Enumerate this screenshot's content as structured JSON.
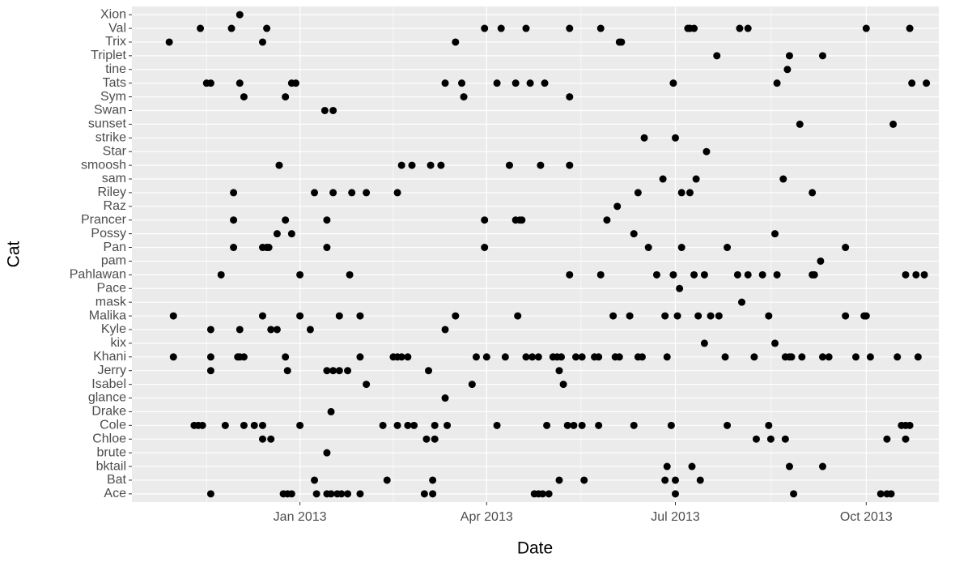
{
  "chart_data": {
    "type": "scatter",
    "x_label": "Date",
    "y_label": "Cat",
    "xlim": [
      "2012-10-12",
      "2013-11-05"
    ],
    "xticks": [
      {
        "value": "2013-01-01",
        "label": "Jan 2013"
      },
      {
        "value": "2013-04-01",
        "label": "Apr 2013"
      },
      {
        "value": "2013-07-01",
        "label": "Jul 2013"
      },
      {
        "value": "2013-10-01",
        "label": "Oct 2013"
      }
    ],
    "categories": [
      "Ace",
      "Bat",
      "bktail",
      "brute",
      "Chloe",
      "Cole",
      "Drake",
      "glance",
      "Isabel",
      "Jerry",
      "Khani",
      "kix",
      "Kyle",
      "Malika",
      "mask",
      "Pace",
      "Pahlawan",
      "pam",
      "Pan",
      "Possy",
      "Prancer",
      "Raz",
      "Riley",
      "sam",
      "smoosh",
      "Star",
      "strike",
      "sunset",
      "Swan",
      "Sym",
      "Tats",
      "tine",
      "Triplet",
      "Trix",
      "Val",
      "Xion"
    ],
    "color": "#000000",
    "grid": true,
    "background": "#ebebeb",
    "x": [
      "2012-12-03",
      "2012-11-14",
      "2012-11-29",
      "2012-12-16",
      "2013-03-31",
      "2013-04-08",
      "2013-04-20",
      "2013-05-11",
      "2013-05-26",
      "2013-07-07",
      "2013-07-08",
      "2013-07-10",
      "2013-08-01",
      "2013-08-05",
      "2013-10-01",
      "2013-10-22",
      "2012-10-30",
      "2012-12-14",
      "2013-03-17",
      "2013-06-04",
      "2013-06-05",
      "2013-07-21",
      "2013-08-25",
      "2013-09-10",
      "2013-08-24",
      "2012-11-17",
      "2012-11-19",
      "2012-12-03",
      "2012-12-28",
      "2012-12-30",
      "2013-03-12",
      "2013-03-20",
      "2013-04-06",
      "2013-04-15",
      "2013-04-22",
      "2013-04-29",
      "2013-06-30",
      "2013-08-19",
      "2013-10-23",
      "2013-10-30",
      "2012-12-05",
      "2012-12-25",
      "2013-03-21",
      "2013-05-11",
      "2013-01-13",
      "2013-01-17",
      "2013-08-30",
      "2013-10-14",
      "2013-06-16",
      "2013-07-01",
      "2013-07-16",
      "2012-12-22",
      "2013-02-19",
      "2013-02-24",
      "2013-03-05",
      "2013-03-10",
      "2013-04-12",
      "2013-04-27",
      "2013-05-11",
      "2013-06-25",
      "2013-07-11",
      "2013-08-22",
      "2012-11-30",
      "2013-01-08",
      "2013-01-17",
      "2013-01-26",
      "2013-02-02",
      "2013-02-17",
      "2013-06-13",
      "2013-07-04",
      "2013-07-08",
      "2013-09-05",
      "2013-06-03",
      "2012-11-30",
      "2012-12-25",
      "2013-01-14",
      "2013-03-31",
      "2013-04-15",
      "2013-04-17",
      "2013-04-18",
      "2013-05-29",
      "2012-12-21",
      "2012-12-28",
      "2013-06-11",
      "2013-08-18",
      "2012-11-30",
      "2012-12-14",
      "2012-12-16",
      "2012-12-17",
      "2013-01-14",
      "2013-03-31",
      "2013-06-18",
      "2013-07-04",
      "2013-07-26",
      "2013-09-21",
      "2013-09-09",
      "2012-11-24",
      "2013-01-01",
      "2013-01-25",
      "2013-05-11",
      "2013-05-26",
      "2013-06-22",
      "2013-06-30",
      "2013-07-10",
      "2013-07-15",
      "2013-07-31",
      "2013-08-05",
      "2013-08-12",
      "2013-08-19",
      "2013-09-05",
      "2013-09-06",
      "2013-10-20",
      "2013-10-25",
      "2013-10-29",
      "2013-07-03",
      "2013-08-02",
      "2012-11-01",
      "2012-12-14",
      "2013-01-01",
      "2013-01-20",
      "2013-01-30",
      "2013-03-17",
      "2013-04-16",
      "2013-06-01",
      "2013-06-09",
      "2013-06-26",
      "2013-07-02",
      "2013-07-12",
      "2013-07-18",
      "2013-07-22",
      "2013-08-15",
      "2013-09-21",
      "2013-09-30",
      "2013-10-01",
      "2012-11-19",
      "2012-12-03",
      "2012-12-18",
      "2012-12-21",
      "2013-01-06",
      "2013-03-12",
      "2013-07-15",
      "2013-08-18",
      "2012-11-01",
      "2012-11-19",
      "2012-12-02",
      "2012-12-03",
      "2012-12-05",
      "2012-12-25",
      "2013-01-30",
      "2013-02-15",
      "2013-02-17",
      "2013-02-19",
      "2013-02-22",
      "2013-03-27",
      "2013-04-01",
      "2013-04-10",
      "2013-04-20",
      "2013-04-23",
      "2013-04-26",
      "2013-05-03",
      "2013-05-05",
      "2013-05-07",
      "2013-05-14",
      "2013-05-17",
      "2013-05-23",
      "2013-05-25",
      "2013-06-02",
      "2013-06-04",
      "2013-06-13",
      "2013-06-15",
      "2013-06-27",
      "2013-07-25",
      "2013-08-08",
      "2013-08-23",
      "2013-08-25",
      "2013-08-26",
      "2013-08-31",
      "2013-09-10",
      "2013-09-13",
      "2013-09-26",
      "2013-10-03",
      "2013-10-16",
      "2013-10-26",
      "2012-11-19",
      "2012-12-26",
      "2013-01-14",
      "2013-01-17",
      "2013-01-20",
      "2013-01-24",
      "2013-03-04",
      "2013-05-06",
      "2013-02-02",
      "2013-03-25",
      "2013-05-08",
      "2013-03-12",
      "2013-01-16",
      "2012-11-11",
      "2012-11-13",
      "2012-11-15",
      "2012-11-26",
      "2012-12-05",
      "2012-12-10",
      "2012-12-14",
      "2013-01-01",
      "2013-02-10",
      "2013-02-17",
      "2013-02-22",
      "2013-02-25",
      "2013-03-07",
      "2013-03-13",
      "2013-04-06",
      "2013-04-30",
      "2013-05-10",
      "2013-05-13",
      "2013-05-17",
      "2013-05-25",
      "2013-06-11",
      "2013-06-29",
      "2013-07-26",
      "2013-08-15",
      "2013-10-18",
      "2013-10-20",
      "2013-10-22",
      "2012-12-14",
      "2012-12-18",
      "2013-03-03",
      "2013-03-07",
      "2013-08-09",
      "2013-08-16",
      "2013-08-23",
      "2013-10-11",
      "2013-10-20",
      "2013-01-14",
      "2013-06-27",
      "2013-07-09",
      "2013-08-25",
      "2013-09-10",
      "2013-01-08",
      "2013-02-12",
      "2013-03-06",
      "2013-05-06",
      "2013-05-18",
      "2013-06-26",
      "2013-07-01",
      "2013-07-13",
      "2012-11-19",
      "2012-12-24",
      "2012-12-26",
      "2012-12-28",
      "2013-01-09",
      "2013-01-14",
      "2013-01-16",
      "2013-01-19",
      "2013-01-21",
      "2013-01-24",
      "2013-01-30",
      "2013-03-02",
      "2013-03-06",
      "2013-04-24",
      "2013-04-26",
      "2013-04-28",
      "2013-05-01",
      "2013-07-01",
      "2013-08-27",
      "2013-10-08",
      "2013-10-11",
      "2013-10-13"
    ],
    "y": [
      "Xion",
      "Val",
      "Val",
      "Val",
      "Val",
      "Val",
      "Val",
      "Val",
      "Val",
      "Val",
      "Val",
      "Val",
      "Val",
      "Val",
      "Val",
      "Val",
      "Trix",
      "Trix",
      "Trix",
      "Trix",
      "Trix",
      "Triplet",
      "Triplet",
      "Triplet",
      "tine",
      "Tats",
      "Tats",
      "Tats",
      "Tats",
      "Tats",
      "Tats",
      "Tats",
      "Tats",
      "Tats",
      "Tats",
      "Tats",
      "Tats",
      "Tats",
      "Tats",
      "Tats",
      "Sym",
      "Sym",
      "Sym",
      "Sym",
      "Swan",
      "Swan",
      "sunset",
      "sunset",
      "strike",
      "strike",
      "Star",
      "smoosh",
      "smoosh",
      "smoosh",
      "smoosh",
      "smoosh",
      "smoosh",
      "smoosh",
      "smoosh",
      "sam",
      "sam",
      "sam",
      "Riley",
      "Riley",
      "Riley",
      "Riley",
      "Riley",
      "Riley",
      "Riley",
      "Riley",
      "Riley",
      "Riley",
      "Raz",
      "Prancer",
      "Prancer",
      "Prancer",
      "Prancer",
      "Prancer",
      "Prancer",
      "Prancer",
      "Prancer",
      "Possy",
      "Possy",
      "Possy",
      "Possy",
      "Pan",
      "Pan",
      "Pan",
      "Pan",
      "Pan",
      "Pan",
      "Pan",
      "Pan",
      "Pan",
      "Pan",
      "pam",
      "Pahlawan",
      "Pahlawan",
      "Pahlawan",
      "Pahlawan",
      "Pahlawan",
      "Pahlawan",
      "Pahlawan",
      "Pahlawan",
      "Pahlawan",
      "Pahlawan",
      "Pahlawan",
      "Pahlawan",
      "Pahlawan",
      "Pahlawan",
      "Pahlawan",
      "Pahlawan",
      "Pahlawan",
      "Pahlawan",
      "Pace",
      "mask",
      "Malika",
      "Malika",
      "Malika",
      "Malika",
      "Malika",
      "Malika",
      "Malika",
      "Malika",
      "Malika",
      "Malika",
      "Malika",
      "Malika",
      "Malika",
      "Malika",
      "Malika",
      "Malika",
      "Malika",
      "Malika",
      "Kyle",
      "Kyle",
      "Kyle",
      "Kyle",
      "Kyle",
      "Kyle",
      "kix",
      "kix",
      "Khani",
      "Khani",
      "Khani",
      "Khani",
      "Khani",
      "Khani",
      "Khani",
      "Khani",
      "Khani",
      "Khani",
      "Khani",
      "Khani",
      "Khani",
      "Khani",
      "Khani",
      "Khani",
      "Khani",
      "Khani",
      "Khani",
      "Khani",
      "Khani",
      "Khani",
      "Khani",
      "Khani",
      "Khani",
      "Khani",
      "Khani",
      "Khani",
      "Khani",
      "Khani",
      "Khani",
      "Khani",
      "Khani",
      "Khani",
      "Khani",
      "Khani",
      "Khani",
      "Khani",
      "Khani",
      "Khani",
      "Khani",
      "Jerry",
      "Jerry",
      "Jerry",
      "Jerry",
      "Jerry",
      "Jerry",
      "Jerry",
      "Jerry",
      "Isabel",
      "Isabel",
      "Isabel",
      "glance",
      "Drake",
      "Cole",
      "Cole",
      "Cole",
      "Cole",
      "Cole",
      "Cole",
      "Cole",
      "Cole",
      "Cole",
      "Cole",
      "Cole",
      "Cole",
      "Cole",
      "Cole",
      "Cole",
      "Cole",
      "Cole",
      "Cole",
      "Cole",
      "Cole",
      "Cole",
      "Cole",
      "Cole",
      "Cole",
      "Cole",
      "Cole",
      "Cole",
      "Chloe",
      "Chloe",
      "Chloe",
      "Chloe",
      "Chloe",
      "Chloe",
      "Chloe",
      "Chloe",
      "Chloe",
      "brute",
      "bktail",
      "bktail",
      "bktail",
      "bktail",
      "Bat",
      "Bat",
      "Bat",
      "Bat",
      "Bat",
      "Bat",
      "Bat",
      "Bat",
      "Ace",
      "Ace",
      "Ace",
      "Ace",
      "Ace",
      "Ace",
      "Ace",
      "Ace",
      "Ace",
      "Ace",
      "Ace",
      "Ace",
      "Ace",
      "Ace",
      "Ace",
      "Ace",
      "Ace",
      "Ace",
      "Ace",
      "Ace",
      "Ace",
      "Ace"
    ]
  }
}
